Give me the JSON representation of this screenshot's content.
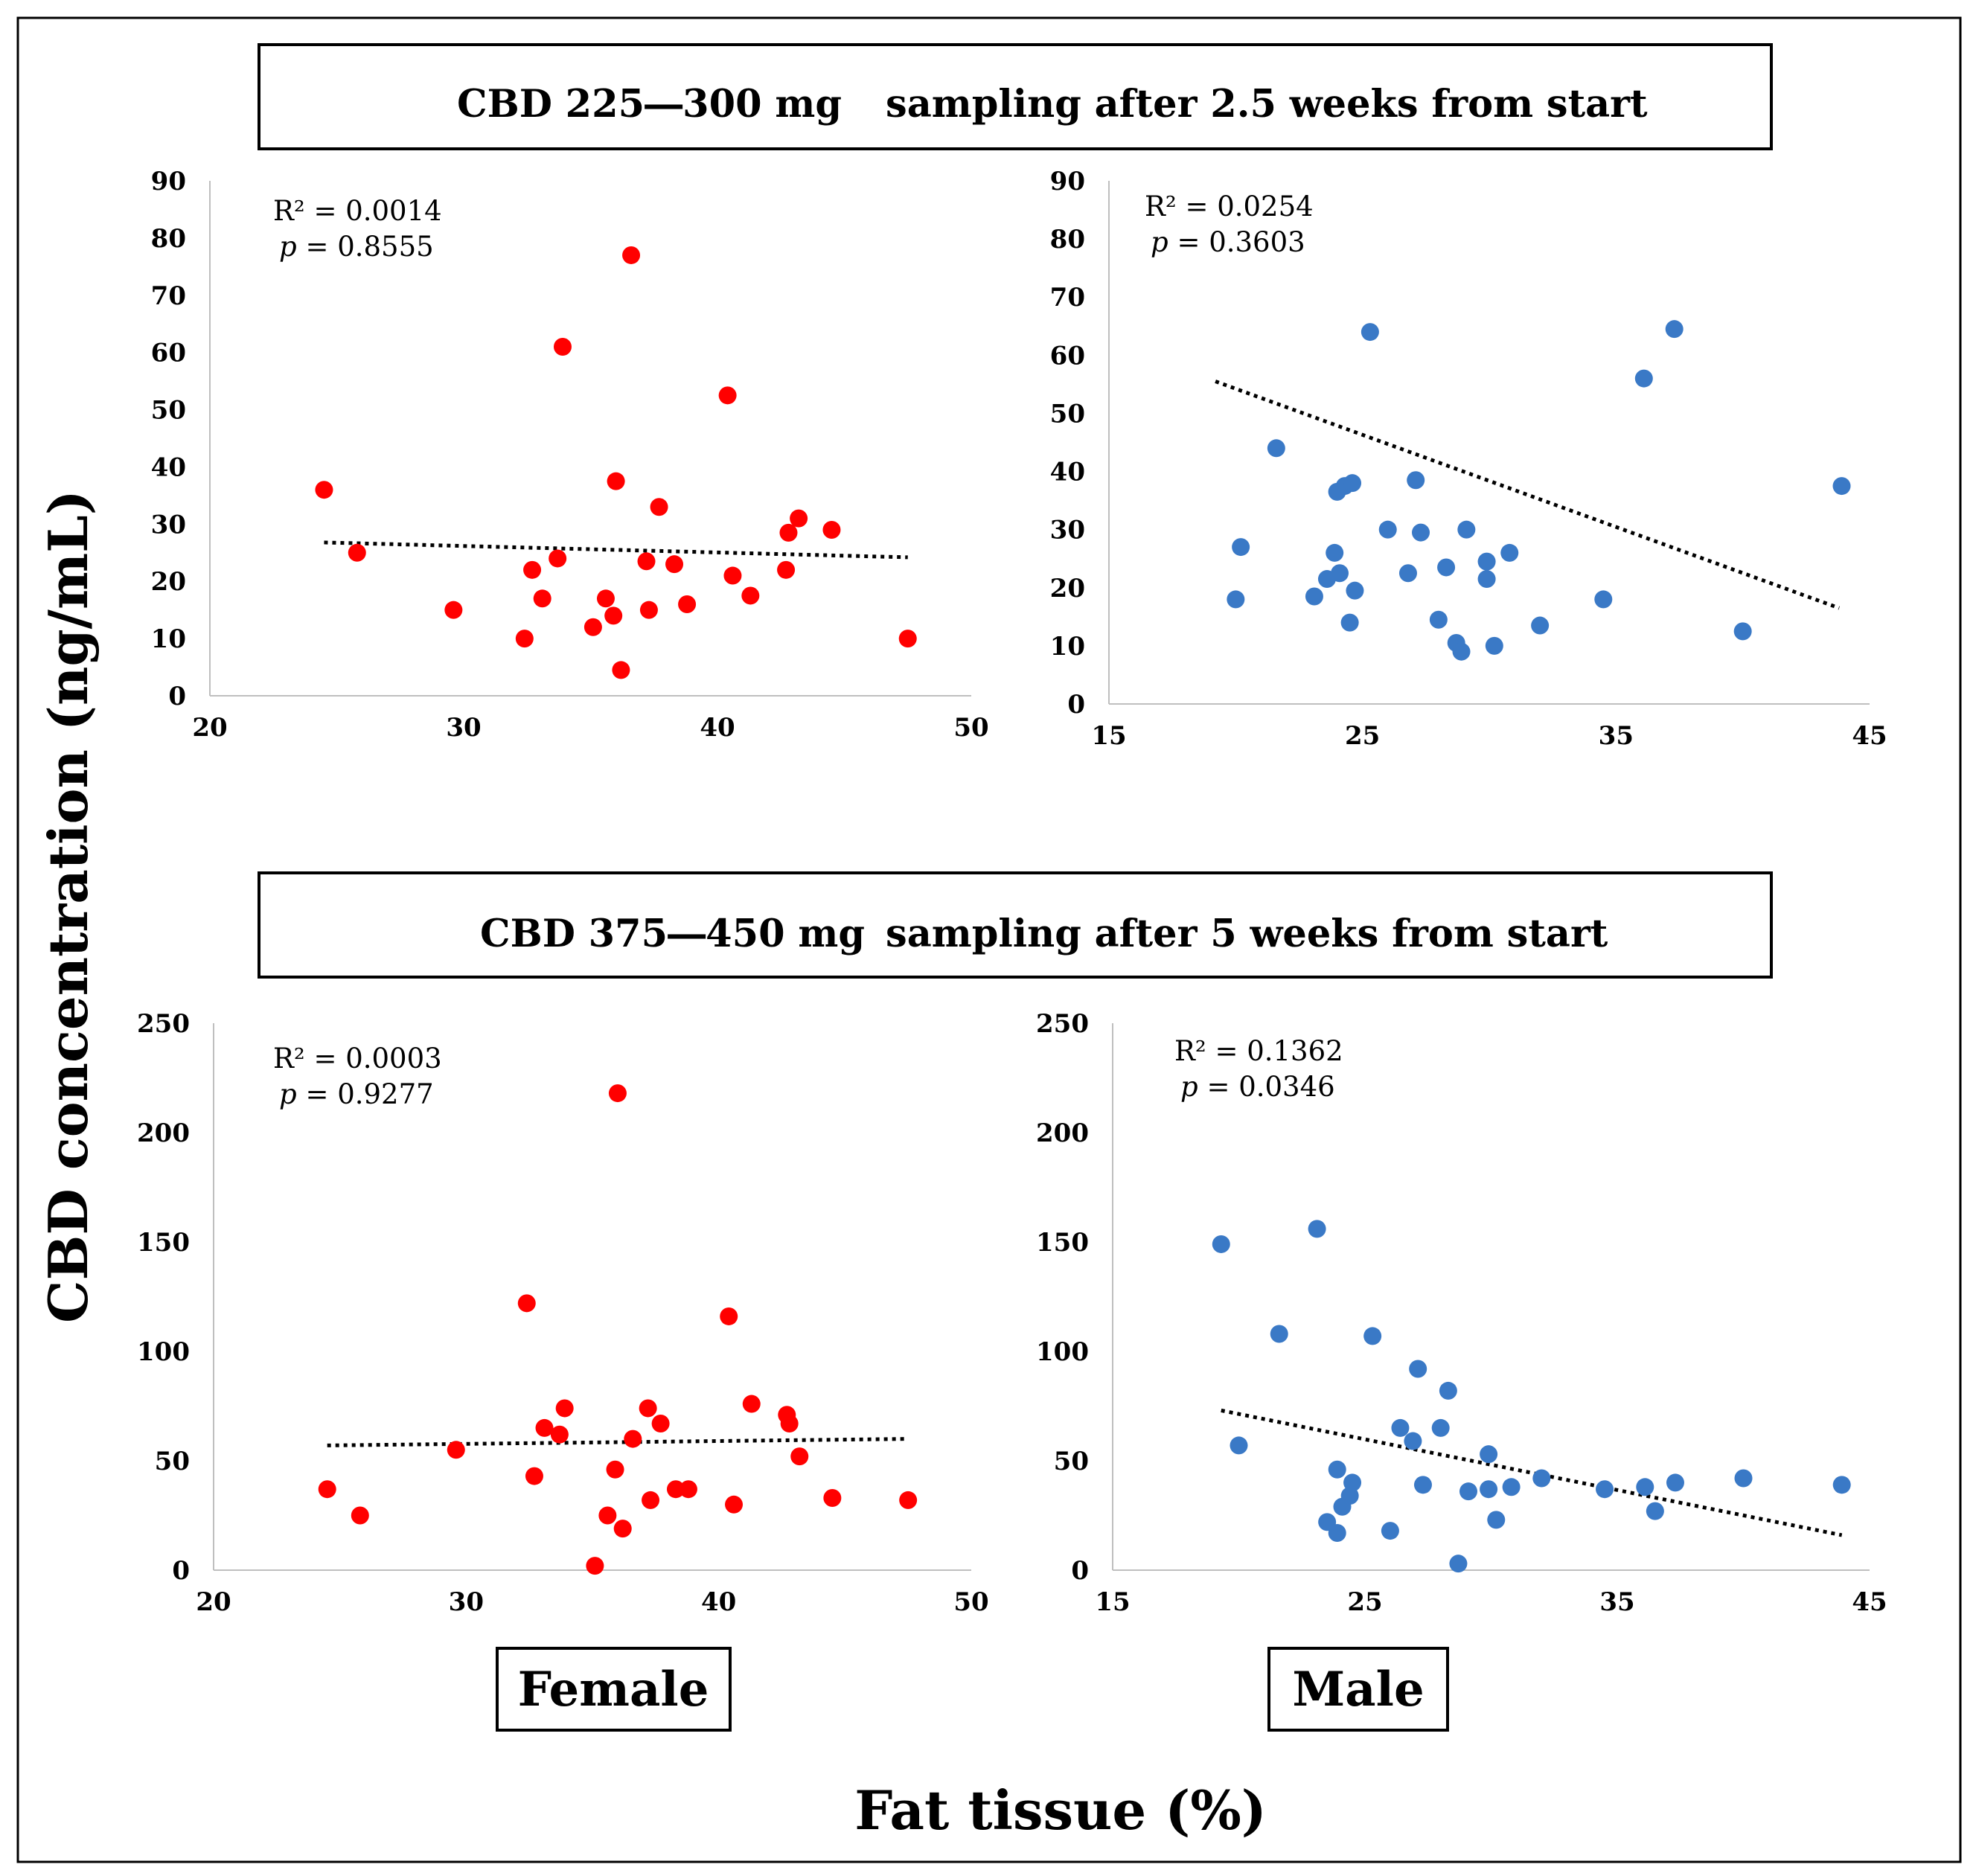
{
  "figure": {
    "y_axis_title": "CBD concentration (ng/mL)",
    "x_axis_title": "Fat tissue (%)",
    "group_labels": {
      "female": "Female",
      "male": "Male"
    },
    "colors": {
      "female": "#ff0000",
      "male": "#3a79c6",
      "trendline": "#000000",
      "axis": "#bfbfbf"
    }
  },
  "panel_titles": [
    {
      "dose": "CBD 225―300 mg",
      "sampling": "sampling after 2.5 weeks from start"
    },
    {
      "dose": "CBD  375―450 mg",
      "sampling": "sampling after  5 weeks from start"
    }
  ],
  "chart_data": [
    {
      "id": "female_2_5wk",
      "type": "scatter",
      "group": "Female",
      "xlabel": "Fat tissue (%)",
      "ylabel": "CBD concentration (ng/mL)",
      "xlim": [
        20,
        50
      ],
      "ylim": [
        0,
        90
      ],
      "xticks": [
        "20",
        "30",
        "40",
        "50"
      ],
      "yticks": [
        "0",
        "10",
        "20",
        "30",
        "40",
        "50",
        "60",
        "70",
        "80",
        "90"
      ],
      "stats": {
        "r2": "R² = 0.0014",
        "p_label": "p",
        "p_value": " = 0.8555"
      },
      "trendline": {
        "x": [
          24.5,
          47.5
        ],
        "y": [
          26.8,
          24.2
        ]
      },
      "x": [
        24.5,
        25.8,
        29.6,
        32.4,
        32.7,
        33.1,
        33.7,
        33.9,
        35.1,
        35.6,
        35.9,
        36.0,
        36.2,
        36.6,
        37.2,
        37.3,
        37.7,
        38.3,
        38.8,
        40.4,
        40.6,
        41.3,
        42.7,
        42.8,
        43.2,
        44.5,
        47.5
      ],
      "y": [
        36,
        25,
        15,
        10,
        22,
        17,
        24,
        61,
        12,
        17,
        14,
        37.5,
        4.5,
        77,
        23.5,
        15,
        33,
        23,
        16,
        52.5,
        21,
        17.5,
        22,
        28.5,
        31,
        29,
        10
      ]
    },
    {
      "id": "male_2_5wk",
      "type": "scatter",
      "group": "Male",
      "xlabel": "Fat tissue (%)",
      "ylabel": "CBD concentration (ng/mL)",
      "xlim": [
        15,
        45
      ],
      "ylim": [
        0,
        90
      ],
      "xticks": [
        "15",
        "25",
        "35",
        "45"
      ],
      "yticks": [
        "0",
        "10",
        "20",
        "30",
        "40",
        "50",
        "60",
        "70",
        "80",
        "90"
      ],
      "stats": {
        "r2": "R² = 0.0254",
        "p_label": "p",
        "p_value": " = 0.3603"
      },
      "trendline": {
        "x": [
          19.2,
          43.8
        ],
        "y": [
          55.5,
          16.5
        ]
      },
      "x": [
        20.0,
        20.2,
        21.6,
        23.1,
        23.6,
        23.9,
        24.0,
        24.1,
        24.3,
        24.5,
        24.6,
        24.7,
        25.3,
        26.0,
        26.8,
        27.1,
        27.3,
        28.0,
        28.3,
        28.7,
        28.9,
        29.1,
        29.9,
        29.9,
        30.2,
        30.8,
        32.0,
        34.5,
        36.1,
        37.3,
        40.0,
        43.9
      ],
      "y": [
        18,
        27,
        44,
        18.5,
        21.5,
        26,
        36.5,
        22.5,
        37.5,
        14,
        38,
        19.5,
        64,
        30,
        22.5,
        38.5,
        29.5,
        14.5,
        23.5,
        10.5,
        9,
        30,
        21.5,
        24.5,
        10,
        26,
        13.5,
        18,
        56,
        64.5,
        12.5,
        37.5
      ]
    },
    {
      "id": "female_5wk",
      "type": "scatter",
      "group": "Female",
      "xlabel": "Fat tissue (%)",
      "ylabel": "CBD concentration (ng/mL)",
      "xlim": [
        20,
        50
      ],
      "ylim": [
        0,
        250
      ],
      "xticks": [
        "20",
        "30",
        "40",
        "50"
      ],
      "yticks": [
        "0",
        "50",
        "100",
        "150",
        "200",
        "250"
      ],
      "stats": {
        "r2": "R² = 0.0003",
        "p_label": "p",
        "p_value": " = 0.9277"
      },
      "trendline": {
        "x": [
          24.5,
          47.5
        ],
        "y": [
          57,
          60
        ]
      },
      "x": [
        24.5,
        25.8,
        29.6,
        32.4,
        32.7,
        33.1,
        33.7,
        33.9,
        35.1,
        35.6,
        35.9,
        36.0,
        36.2,
        36.6,
        37.2,
        37.3,
        37.7,
        38.3,
        38.8,
        40.4,
        40.6,
        41.3,
        42.7,
        42.8,
        43.2,
        44.5,
        47.5
      ],
      "y": [
        37,
        25,
        55,
        122,
        43,
        65,
        62,
        74,
        2,
        25,
        46,
        218,
        19,
        60,
        74,
        32,
        67,
        37,
        37,
        116,
        30,
        76,
        71,
        67,
        52,
        33,
        32
      ]
    },
    {
      "id": "male_5wk",
      "type": "scatter",
      "group": "Male",
      "xlabel": "Fat tissue (%)",
      "ylabel": "CBD concentration (ng/mL)",
      "xlim": [
        15,
        45
      ],
      "ylim": [
        0,
        250
      ],
      "xticks": [
        "15",
        "25",
        "35",
        "45"
      ],
      "yticks": [
        "0",
        "50",
        "100",
        "150",
        "200",
        "250"
      ],
      "stats": {
        "r2": "R² = 0.1362",
        "p_label": "p",
        "p_value": " = 0.0346"
      },
      "trendline": {
        "x": [
          19.3,
          43.9
        ],
        "y": [
          73,
          16
        ]
      },
      "x": [
        19.3,
        20.0,
        21.6,
        23.1,
        23.5,
        23.9,
        23.9,
        24.1,
        24.4,
        24.5,
        25.3,
        26.0,
        26.4,
        26.9,
        27.1,
        27.3,
        28.0,
        28.3,
        28.7,
        29.1,
        29.9,
        29.9,
        30.2,
        30.8,
        32.0,
        34.5,
        36.1,
        36.5,
        37.3,
        40.0,
        43.9
      ],
      "y": [
        149,
        57,
        108,
        156,
        22,
        17,
        46,
        29,
        34,
        40,
        107,
        18,
        65,
        59,
        92,
        39,
        65,
        82,
        3,
        36,
        53,
        37,
        23,
        38,
        42,
        37,
        38,
        27,
        40,
        42,
        39
      ]
    }
  ]
}
